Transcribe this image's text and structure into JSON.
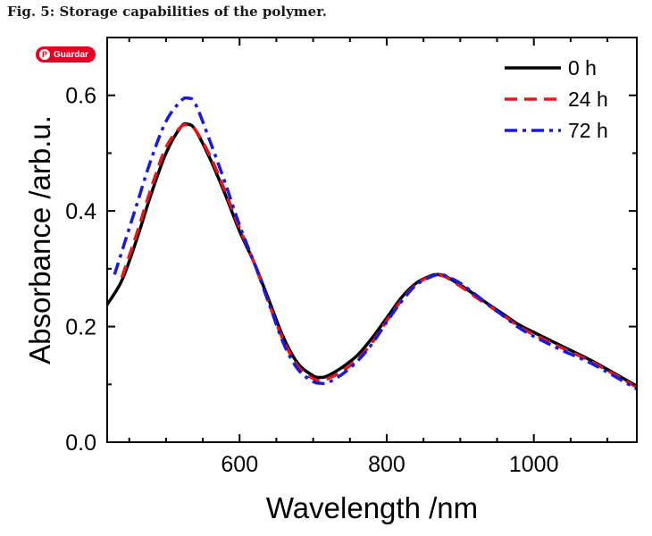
{
  "caption": "Fig. 5: Storage capabilities of the polymer.",
  "save_button": {
    "label": "Guardar",
    "icon": "pinterest-icon",
    "color": "#e60023"
  },
  "chart_data": {
    "type": "line",
    "xlabel": "Wavelength /nm",
    "ylabel": "Absorbance /arb.u.",
    "xlim": [
      420,
      1140
    ],
    "ylim": [
      0,
      0.7
    ],
    "xticks": [
      600,
      800,
      1000
    ],
    "xtick_labels": [
      "600",
      "800",
      "1000"
    ],
    "yticks": [
      0.0,
      0.2,
      0.4,
      0.6
    ],
    "ytick_labels": [
      "0.0",
      "0.2",
      "0.4",
      "0.6"
    ],
    "legend_position": "top-right",
    "series": [
      {
        "name": "0 h",
        "color": "#000000",
        "style": "solid",
        "x": [
          420,
          440,
          460,
          480,
          500,
          520,
          530,
          540,
          560,
          580,
          600,
          620,
          640,
          660,
          680,
          700,
          710,
          720,
          740,
          760,
          780,
          800,
          820,
          840,
          860,
          870,
          880,
          900,
          920,
          940,
          960,
          980,
          1000,
          1040,
          1080,
          1140
        ],
        "y": [
          0.238,
          0.28,
          0.35,
          0.43,
          0.5,
          0.545,
          0.55,
          0.54,
          0.49,
          0.43,
          0.365,
          0.31,
          0.245,
          0.18,
          0.135,
          0.115,
          0.112,
          0.115,
          0.13,
          0.15,
          0.18,
          0.215,
          0.25,
          0.275,
          0.288,
          0.29,
          0.287,
          0.272,
          0.255,
          0.237,
          0.22,
          0.203,
          0.19,
          0.165,
          0.14,
          0.097
        ]
      },
      {
        "name": "24 h",
        "color": "#e8141b",
        "style": "dashed",
        "x": [
          440,
          460,
          480,
          500,
          520,
          530,
          540,
          560,
          580,
          600,
          620,
          640,
          660,
          680,
          700,
          710,
          720,
          740,
          760,
          780,
          800,
          820,
          840,
          860,
          870,
          880,
          900,
          920,
          940,
          960,
          980,
          1000,
          1040,
          1080,
          1140
        ],
        "y": [
          0.285,
          0.36,
          0.44,
          0.51,
          0.545,
          0.548,
          0.54,
          0.495,
          0.435,
          0.37,
          0.31,
          0.24,
          0.175,
          0.13,
          0.11,
          0.107,
          0.11,
          0.123,
          0.143,
          0.172,
          0.21,
          0.245,
          0.273,
          0.287,
          0.289,
          0.286,
          0.27,
          0.252,
          0.235,
          0.218,
          0.2,
          0.186,
          0.162,
          0.138,
          0.095
        ]
      },
      {
        "name": "72 h",
        "color": "#1a1adb",
        "style": "dashdot",
        "x": [
          430,
          440,
          460,
          480,
          500,
          520,
          530,
          540,
          560,
          580,
          600,
          620,
          640,
          660,
          680,
          700,
          710,
          720,
          740,
          760,
          780,
          800,
          820,
          840,
          860,
          870,
          880,
          900,
          920,
          940,
          960,
          980,
          1000,
          1040,
          1080,
          1140
        ],
        "y": [
          0.29,
          0.33,
          0.41,
          0.49,
          0.555,
          0.59,
          0.595,
          0.585,
          0.52,
          0.45,
          0.375,
          0.31,
          0.24,
          0.17,
          0.125,
          0.105,
          0.102,
          0.103,
          0.118,
          0.14,
          0.17,
          0.208,
          0.243,
          0.272,
          0.286,
          0.29,
          0.288,
          0.275,
          0.256,
          0.236,
          0.217,
          0.198,
          0.183,
          0.158,
          0.135,
          0.092
        ]
      }
    ]
  }
}
